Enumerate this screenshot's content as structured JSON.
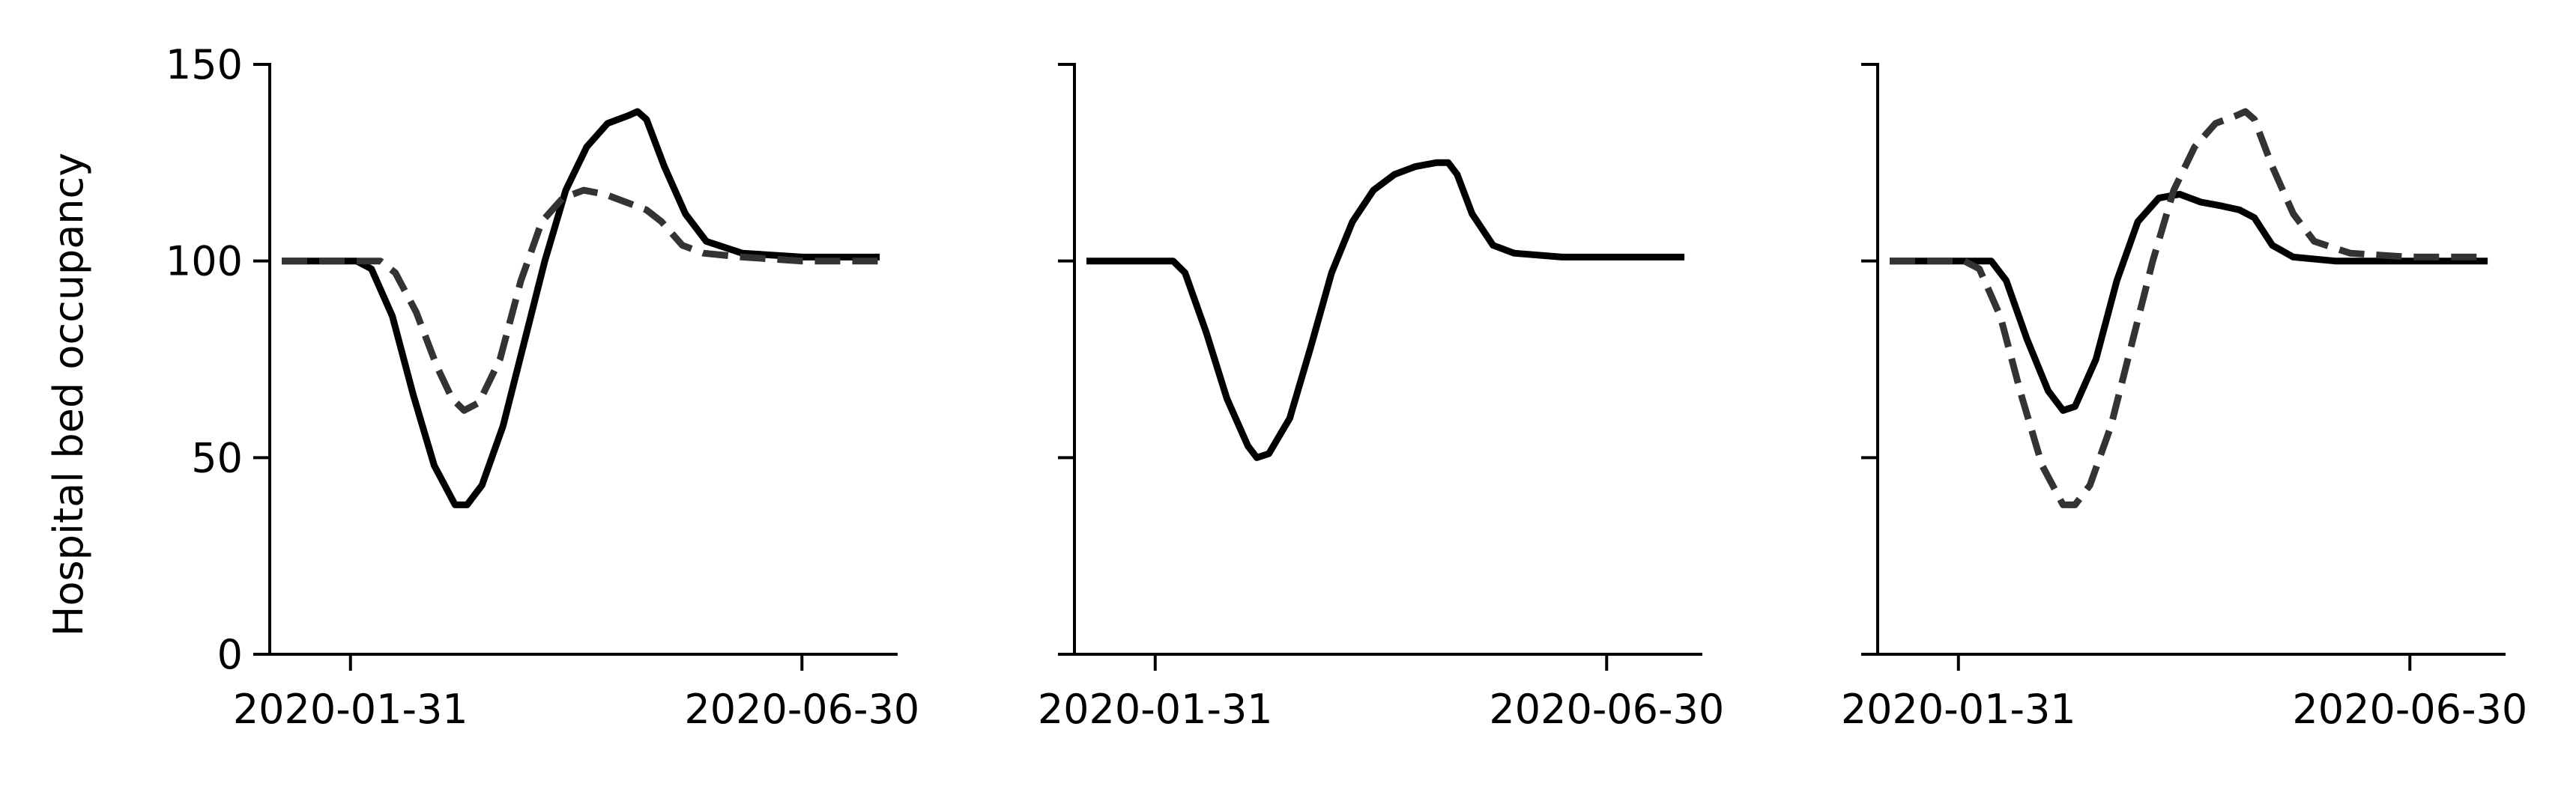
{
  "chart_data": {
    "type": "line",
    "ylabel": "Hospital bed occupancy",
    "ylim": [
      0,
      150
    ],
    "yticks": [
      0,
      50,
      100,
      150
    ],
    "xlim": [
      "2020-01-04",
      "2020-08-01"
    ],
    "xticks": [
      "2020-01-31",
      "2020-06-30"
    ],
    "grid": false,
    "legend": "none",
    "colors": {
      "solid": "#000000",
      "dashed": "#333333"
    },
    "panels": [
      {
        "series": [
          {
            "style": "solid",
            "points": [
              [
                "2020-01-08",
                100
              ],
              [
                "2020-02-02",
                100
              ],
              [
                "2020-02-07",
                98
              ],
              [
                "2020-02-14",
                86
              ],
              [
                "2020-02-21",
                66
              ],
              [
                "2020-02-28",
                48
              ],
              [
                "2020-03-06",
                38
              ],
              [
                "2020-03-10",
                38
              ],
              [
                "2020-03-15",
                43
              ],
              [
                "2020-03-22",
                58
              ],
              [
                "2020-03-29",
                79
              ],
              [
                "2020-04-05",
                100
              ],
              [
                "2020-04-12",
                118
              ],
              [
                "2020-04-19",
                129
              ],
              [
                "2020-04-26",
                135
              ],
              [
                "2020-05-03",
                137
              ],
              [
                "2020-05-06",
                138
              ],
              [
                "2020-05-09",
                136
              ],
              [
                "2020-05-15",
                124
              ],
              [
                "2020-05-22",
                112
              ],
              [
                "2020-05-29",
                105
              ],
              [
                "2020-06-10",
                102
              ],
              [
                "2020-06-30",
                101
              ],
              [
                "2020-07-26",
                101
              ]
            ]
          },
          {
            "style": "dashed",
            "points": [
              [
                "2020-01-08",
                100
              ],
              [
                "2020-02-10",
                100
              ],
              [
                "2020-02-15",
                97
              ],
              [
                "2020-02-22",
                87
              ],
              [
                "2020-02-29",
                73
              ],
              [
                "2020-03-05",
                65
              ],
              [
                "2020-03-09",
                62
              ],
              [
                "2020-03-14",
                64
              ],
              [
                "2020-03-21",
                75
              ],
              [
                "2020-03-28",
                95
              ],
              [
                "2020-04-04",
                110
              ],
              [
                "2020-04-11",
                116
              ],
              [
                "2020-04-18",
                118
              ],
              [
                "2020-04-25",
                117
              ],
              [
                "2020-05-02",
                115
              ],
              [
                "2020-05-09",
                113
              ],
              [
                "2020-05-14",
                110
              ],
              [
                "2020-05-21",
                104
              ],
              [
                "2020-05-28",
                102
              ],
              [
                "2020-06-10",
                101
              ],
              [
                "2020-06-30",
                100
              ],
              [
                "2020-07-26",
                100
              ]
            ]
          }
        ]
      },
      {
        "series": [
          {
            "style": "solid",
            "points": [
              [
                "2020-01-08",
                100
              ],
              [
                "2020-02-06",
                100
              ],
              [
                "2020-02-10",
                97
              ],
              [
                "2020-02-17",
                82
              ],
              [
                "2020-02-24",
                65
              ],
              [
                "2020-03-02",
                53
              ],
              [
                "2020-03-05",
                50
              ],
              [
                "2020-03-09",
                51
              ],
              [
                "2020-03-16",
                60
              ],
              [
                "2020-03-23",
                78
              ],
              [
                "2020-03-30",
                97
              ],
              [
                "2020-04-06",
                110
              ],
              [
                "2020-04-13",
                118
              ],
              [
                "2020-04-20",
                122
              ],
              [
                "2020-04-27",
                124
              ],
              [
                "2020-05-04",
                125
              ],
              [
                "2020-05-08",
                125
              ],
              [
                "2020-05-11",
                122
              ],
              [
                "2020-05-16",
                112
              ],
              [
                "2020-05-23",
                104
              ],
              [
                "2020-05-30",
                102
              ],
              [
                "2020-06-15",
                101
              ],
              [
                "2020-07-26",
                101
              ]
            ]
          }
        ]
      },
      {
        "series": [
          {
            "style": "solid",
            "points": [
              [
                "2020-01-08",
                100
              ],
              [
                "2020-02-11",
                100
              ],
              [
                "2020-02-16",
                95
              ],
              [
                "2020-02-23",
                80
              ],
              [
                "2020-03-01",
                67
              ],
              [
                "2020-03-06",
                62
              ],
              [
                "2020-03-10",
                63
              ],
              [
                "2020-03-17",
                75
              ],
              [
                "2020-03-24",
                95
              ],
              [
                "2020-03-31",
                110
              ],
              [
                "2020-04-07",
                116
              ],
              [
                "2020-04-14",
                117
              ],
              [
                "2020-04-21",
                115
              ],
              [
                "2020-04-28",
                114
              ],
              [
                "2020-05-04",
                113
              ],
              [
                "2020-05-09",
                111
              ],
              [
                "2020-05-15",
                104
              ],
              [
                "2020-05-22",
                101
              ],
              [
                "2020-06-05",
                100
              ],
              [
                "2020-07-26",
                100
              ]
            ]
          },
          {
            "style": "dashed",
            "points": [
              [
                "2020-01-08",
                100
              ],
              [
                "2020-02-02",
                100
              ],
              [
                "2020-02-07",
                98
              ],
              [
                "2020-02-14",
                86
              ],
              [
                "2020-02-21",
                66
              ],
              [
                "2020-02-28",
                48
              ],
              [
                "2020-03-06",
                38
              ],
              [
                "2020-03-10",
                38
              ],
              [
                "2020-03-15",
                43
              ],
              [
                "2020-03-22",
                58
              ],
              [
                "2020-03-29",
                79
              ],
              [
                "2020-04-05",
                100
              ],
              [
                "2020-04-12",
                118
              ],
              [
                "2020-04-19",
                129
              ],
              [
                "2020-04-26",
                135
              ],
              [
                "2020-05-03",
                137
              ],
              [
                "2020-05-06",
                138
              ],
              [
                "2020-05-09",
                136
              ],
              [
                "2020-05-15",
                124
              ],
              [
                "2020-05-22",
                112
              ],
              [
                "2020-05-29",
                105
              ],
              [
                "2020-06-10",
                102
              ],
              [
                "2020-06-30",
                101
              ],
              [
                "2020-07-26",
                101
              ]
            ]
          }
        ]
      }
    ]
  }
}
